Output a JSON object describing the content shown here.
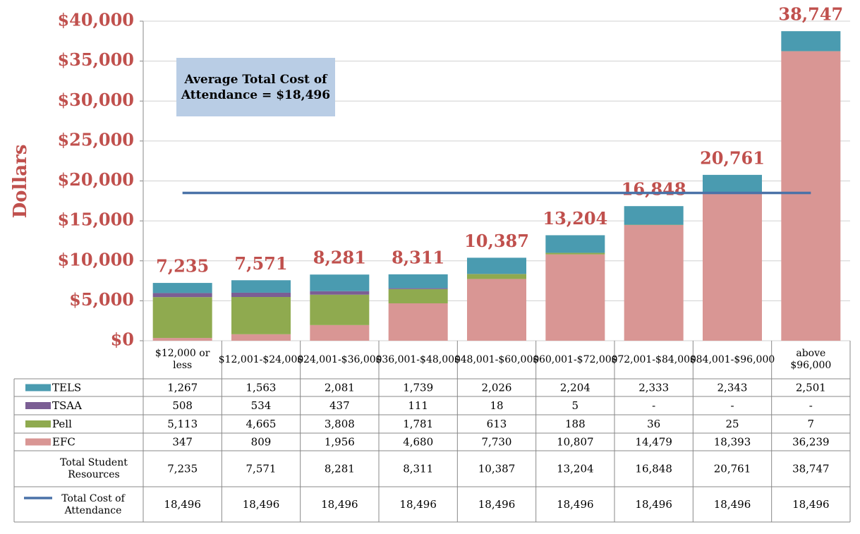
{
  "chart_data": {
    "type": "stacked-bar",
    "y_label": "Dollars",
    "annotation": "Average Total Cost of Attendance = $18,496",
    "categories": [
      "$12,000 or less",
      "$12,001-$24,000",
      "$24,001-$36,000",
      "$36,001-$48,000",
      "$48,001-$60,000",
      "$60,001-$72,000",
      "$72,001-$84,000",
      "$84,001-$96,000",
      "above $96,000"
    ],
    "series": [
      {
        "name": "TELS",
        "color": "#4a9bb0",
        "values": [
          1267,
          1563,
          2081,
          1739,
          2026,
          2204,
          2333,
          2343,
          2501
        ],
        "value_labels": [
          "1,267",
          "1,563",
          "2,081",
          "1,739",
          "2,026",
          "2,204",
          "2,333",
          "2,343",
          "2,501"
        ]
      },
      {
        "name": "TSAA",
        "color": "#7b5e94",
        "values": [
          508,
          534,
          437,
          111,
          18,
          5,
          null,
          null,
          null
        ],
        "value_labels": [
          "508",
          "534",
          "437",
          "111",
          "18",
          "5",
          "-",
          "-",
          "-"
        ]
      },
      {
        "name": "Pell",
        "color": "#8faa4f",
        "values": [
          5113,
          4665,
          3808,
          1781,
          613,
          188,
          36,
          25,
          7
        ],
        "value_labels": [
          "5,113",
          "4,665",
          "3,808",
          "1,781",
          "613",
          "188",
          "36",
          "25",
          "7"
        ]
      },
      {
        "name": "EFC",
        "color": "#d99694",
        "values": [
          347,
          809,
          1956,
          4680,
          7730,
          10807,
          14479,
          18393,
          36239
        ],
        "value_labels": [
          "347",
          "809",
          "1,956",
          "4,680",
          "7,730",
          "10,807",
          "14,479",
          "18,393",
          "36,239"
        ]
      }
    ],
    "totals": {
      "name": "Total Student Resources",
      "values": [
        7235,
        7571,
        8281,
        8311,
        10387,
        13204,
        16848,
        20761,
        38747
      ],
      "value_labels": [
        "7,235",
        "7,571",
        "8,281",
        "8,311",
        "10,387",
        "13,204",
        "16,848",
        "20,761",
        "38,747"
      ]
    },
    "line": {
      "name": "Total Cost of Attendance",
      "color": "#4a72a8",
      "values": [
        18496,
        18496,
        18496,
        18496,
        18496,
        18496,
        18496,
        18496,
        18496
      ],
      "value_labels": [
        "18,496",
        "18,496",
        "18,496",
        "18,496",
        "18,496",
        "18,496",
        "18,496",
        "18,496",
        "18,496"
      ]
    },
    "ylim": [
      0,
      40000
    ],
    "yticks": [
      {
        "value": 0,
        "label": "$0"
      },
      {
        "value": 5000,
        "label": "$5,000"
      },
      {
        "value": 10000,
        "label": "$10,000"
      },
      {
        "value": 15000,
        "label": "$15,000"
      },
      {
        "value": 20000,
        "label": "$20,000"
      },
      {
        "value": 25000,
        "label": "$25,000"
      },
      {
        "value": 30000,
        "label": "$30,000"
      },
      {
        "value": 35000,
        "label": "$35,000"
      },
      {
        "value": 40000,
        "label": "$40,000"
      }
    ],
    "label_color": "#c0504d"
  }
}
